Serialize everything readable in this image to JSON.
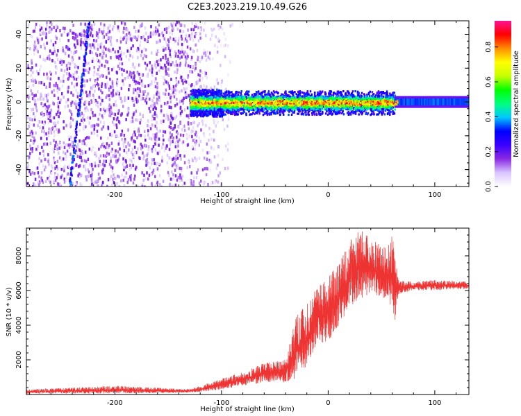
{
  "title": "C2E3.2023.219.10.49.G26",
  "chart_data": [
    {
      "type": "heatmap",
      "xlabel": "Height of straight line (km)",
      "ylabel": "Frequency (Hz)",
      "xlim": [
        -283,
        132
      ],
      "ylim": [
        -50,
        48
      ],
      "xticks": [
        -200,
        -100,
        0,
        100
      ],
      "xtick_labels": [
        "-200",
        "-100",
        "0",
        "100"
      ],
      "yticks": [
        -40,
        -20,
        0,
        20,
        40
      ],
      "ytick_labels": [
        "-40",
        "-20",
        "0",
        "20",
        "40"
      ],
      "colorbar": {
        "label": "Normalized spectral amplitude",
        "range": [
          0,
          0.95
        ],
        "ticks": [
          0.0,
          0.2,
          0.4,
          0.6,
          0.8
        ],
        "tick_labels": [
          "0.0",
          "0.2",
          "0.4",
          "0.6",
          "0.8"
        ],
        "colors": [
          "#ffffff",
          "#d9c4ff",
          "#8a2be2",
          "#3a00ff",
          "#0000ff",
          "#00c8ff",
          "#00ff7f",
          "#00ff00",
          "#c8ff00",
          "#ffff00",
          "#ff8c00",
          "#ff0000",
          "#ff1493"
        ]
      },
      "regions": [
        {
          "name": "noise",
          "x": [
            -283,
            -110
          ],
          "f": [
            -50,
            48
          ],
          "amplitude": 0.12
        },
        {
          "name": "transition",
          "x": [
            -130,
            -100
          ],
          "f": [
            -8,
            8
          ],
          "amplitude": 0.3
        },
        {
          "name": "carrier",
          "x": [
            -130,
            62
          ],
          "f": [
            -4,
            4
          ],
          "amplitude": 0.55
        },
        {
          "name": "steady",
          "x": [
            62,
            132
          ],
          "f": [
            -2,
            2
          ],
          "amplitude": 0.3
        }
      ],
      "streak": {
        "x": [
          -243,
          -225
        ],
        "f": [
          -50,
          48
        ],
        "amplitude": 0.25
      }
    },
    {
      "type": "line",
      "xlabel": "Height of straight line (km)",
      "ylabel": "SNR (10 * v/v)",
      "xlim": [
        -283,
        132
      ],
      "ylim": [
        0,
        9600
      ],
      "xticks": [
        -200,
        -100,
        0,
        100
      ],
      "xtick_labels": [
        "-200",
        "-100",
        "0",
        "100"
      ],
      "yticks": [
        2000,
        4000,
        6000,
        8000
      ],
      "ytick_labels": [
        "2000",
        "4000",
        "6000",
        "8000"
      ],
      "color": "#ee3333",
      "envelope": {
        "x": [
          -283,
          -200,
          -130,
          -110,
          -80,
          -60,
          -40,
          -30,
          -20,
          -10,
          0,
          10,
          20,
          30,
          40,
          50,
          55,
          60,
          63,
          66,
          80,
          100,
          132
        ],
        "low": [
          50,
          60,
          100,
          200,
          500,
          700,
          700,
          900,
          1500,
          3000,
          3000,
          4000,
          5000,
          5500,
          5800,
          5600,
          5500,
          5000,
          4200,
          5800,
          6000,
          6000,
          6100
        ],
        "high": [
          280,
          500,
          300,
          700,
          1300,
          1800,
          2000,
          4500,
          5200,
          6200,
          6800,
          7500,
          8800,
          9500,
          9000,
          8600,
          8400,
          9300,
          7800,
          6600,
          6500,
          6600,
          6500
        ]
      }
    }
  ]
}
